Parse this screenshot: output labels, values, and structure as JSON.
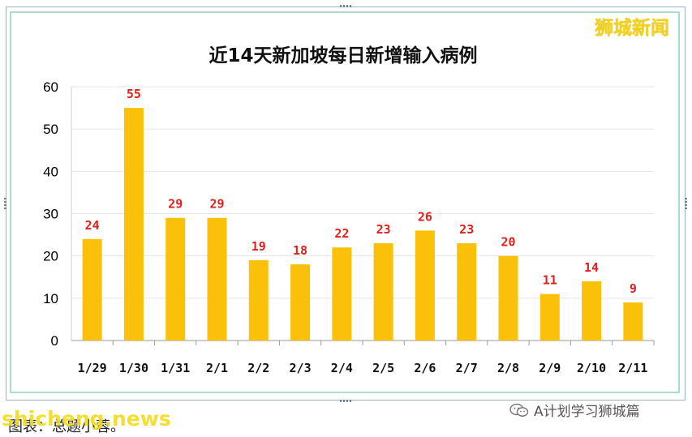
{
  "brand_text": "狮城新闻",
  "footer": {
    "caption": "图表：总题小蓉。",
    "watermark": "shicheng.news",
    "wechat_label": "A计划学习狮城篇"
  },
  "colors": {
    "bar": "#fbc10a",
    "value_label": "#e0201a",
    "grid": "#e6e6e6",
    "axis_text": "#000000"
  },
  "chart_data": {
    "type": "bar",
    "title": "近14天新加坡每日新增输入病例",
    "categories": [
      "1/29",
      "1/30",
      "1/31",
      "2/1",
      "2/2",
      "2/3",
      "2/4",
      "2/5",
      "2/6",
      "2/7",
      "2/8",
      "2/9",
      "2/10",
      "2/11"
    ],
    "values": [
      24,
      55,
      29,
      29,
      19,
      18,
      22,
      23,
      26,
      23,
      20,
      11,
      14,
      9
    ],
    "ylim": [
      0,
      60
    ],
    "yticks": [
      0,
      10,
      20,
      30,
      40,
      50,
      60
    ],
    "grid": true,
    "data_labels": true
  }
}
